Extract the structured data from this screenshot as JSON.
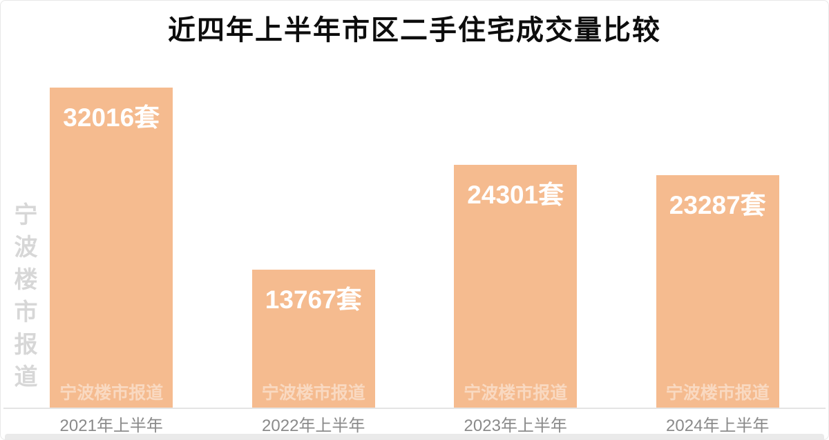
{
  "chart_data": {
    "type": "bar",
    "title": "近四年上半年市区二手住宅成交量比较",
    "categories": [
      "2021年上半年",
      "2022年上半年",
      "2023年上半年",
      "2024年上半年"
    ],
    "values": [
      32016,
      13767,
      24301,
      23287
    ],
    "unit": "套",
    "data_labels": [
      "32016套",
      "13767套",
      "24301套",
      "23287套"
    ],
    "xlabel": "",
    "ylabel": "",
    "ylim": [
      0,
      32016
    ],
    "grid": false,
    "legend": "none",
    "bar_color": "#f5bb8f",
    "value_label_color": "#ffffff"
  },
  "watermark": {
    "side_text": "宁波楼市报道",
    "bar_text": "宁波楼市报道"
  }
}
